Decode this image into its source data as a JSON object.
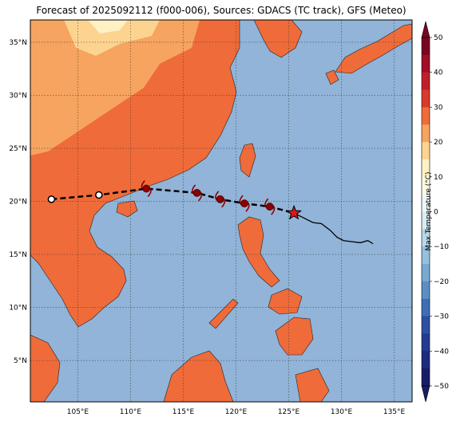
{
  "title": "Forecast of 2025092112 (f000-006), Sources: GDACS (TC track), GFS (Meteo)",
  "lon_ticks": [
    "105°E",
    "110°E",
    "115°E",
    "120°E",
    "125°E",
    "130°E",
    "135°E"
  ],
  "lat_ticks": [
    "5°N",
    "10°N",
    "15°N",
    "20°N",
    "25°N",
    "30°N",
    "35°N"
  ],
  "colorbar": {
    "label": "Max Temperature (°C)",
    "ticks": [
      "50",
      "40",
      "30",
      "20",
      "10",
      "0",
      "−10",
      "−20",
      "−30",
      "−40",
      "−50"
    ],
    "colors": {
      "50": "#7a0423",
      "45": "#a30d28",
      "40": "#bf1f2b",
      "35": "#d93a2c",
      "30": "#f06b3a",
      "25": "#f6a45f",
      "20": "#fcd490",
      "15": "#fef1c4",
      "10": "#fdfbe4",
      "5": "#eef7f7",
      "0": "#d8ecf3",
      "-5": "#b9d8ea",
      "-10": "#96c0dd",
      "-15": "#78a9d1",
      "-20": "#5b8fc4",
      "-25": "#3f6eb4",
      "-30": "#2f4fa5",
      "-35": "#253a93",
      "-40": "#1e2a7e",
      "-45": "#161d68"
    }
  },
  "colors": {
    "ocean": "#91b4d8",
    "land_warm": "#f06b3a",
    "land_mild": "#f6a45f",
    "land_cool": "#fcd490",
    "land_cold": "#fef1c4",
    "track_color": "#000000",
    "storm_color": "#8b0000"
  },
  "storm_track": {
    "forecast_points": [
      {
        "lon": 102.5,
        "lat": 20.2,
        "type": "circle-open"
      },
      {
        "lon": 107.0,
        "lat": 20.6,
        "type": "circle-open"
      },
      {
        "lon": 111.5,
        "lat": 21.2,
        "type": "storm"
      },
      {
        "lon": 116.3,
        "lat": 20.8,
        "type": "storm"
      },
      {
        "lon": 118.5,
        "lat": 20.2,
        "type": "storm"
      },
      {
        "lon": 120.8,
        "lat": 19.8,
        "type": "storm"
      },
      {
        "lon": 123.2,
        "lat": 19.5,
        "type": "storm"
      },
      {
        "lon": 125.5,
        "lat": 18.9,
        "type": "current-star"
      }
    ],
    "past_track": [
      [
        125.5,
        18.9
      ],
      [
        126.5,
        18.4
      ],
      [
        127.3,
        18.0
      ],
      [
        128.1,
        17.9
      ],
      [
        128.9,
        17.3
      ],
      [
        129.6,
        16.6
      ],
      [
        130.2,
        16.3
      ],
      [
        131.0,
        16.2
      ],
      [
        131.8,
        16.1
      ],
      [
        132.5,
        16.3
      ],
      [
        133.0,
        16.0
      ]
    ]
  }
}
